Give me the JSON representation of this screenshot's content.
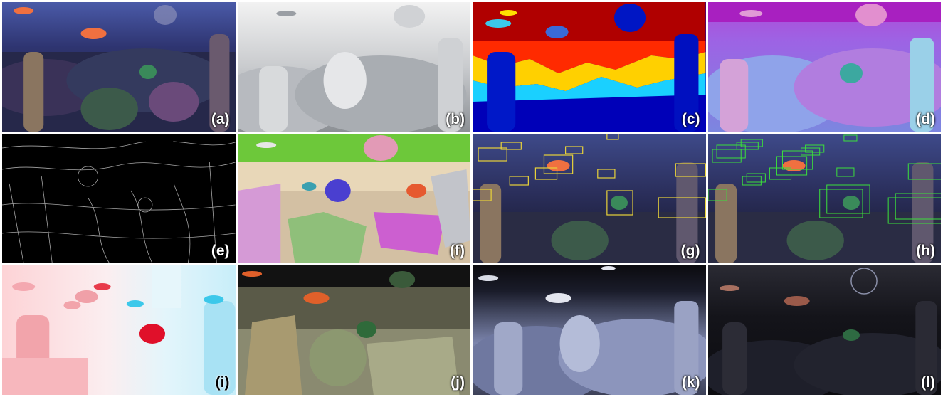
{
  "panels": [
    {
      "id": "a",
      "label": "(a)"
    },
    {
      "id": "b",
      "label": "(b)"
    },
    {
      "id": "c",
      "label": "(c)"
    },
    {
      "id": "d",
      "label": "(d)"
    },
    {
      "id": "e",
      "label": "(e)"
    },
    {
      "id": "f",
      "label": "(f)"
    },
    {
      "id": "g",
      "label": "(g)"
    },
    {
      "id": "h",
      "label": "(h)"
    },
    {
      "id": "i",
      "label": "(i)"
    },
    {
      "id": "j",
      "label": "(j)"
    },
    {
      "id": "k",
      "label": "(k)"
    },
    {
      "id": "l",
      "label": "(l)"
    }
  ],
  "colors": {
    "bbox_2d": "#e8d23a",
    "bbox_3d": "#3be03b",
    "fish_orange": "#f07040",
    "fish_red": "#e0102a",
    "fish_cyan": "#3cc8ea",
    "depth_far": "#b00000",
    "depth_near": "#0000b8"
  }
}
